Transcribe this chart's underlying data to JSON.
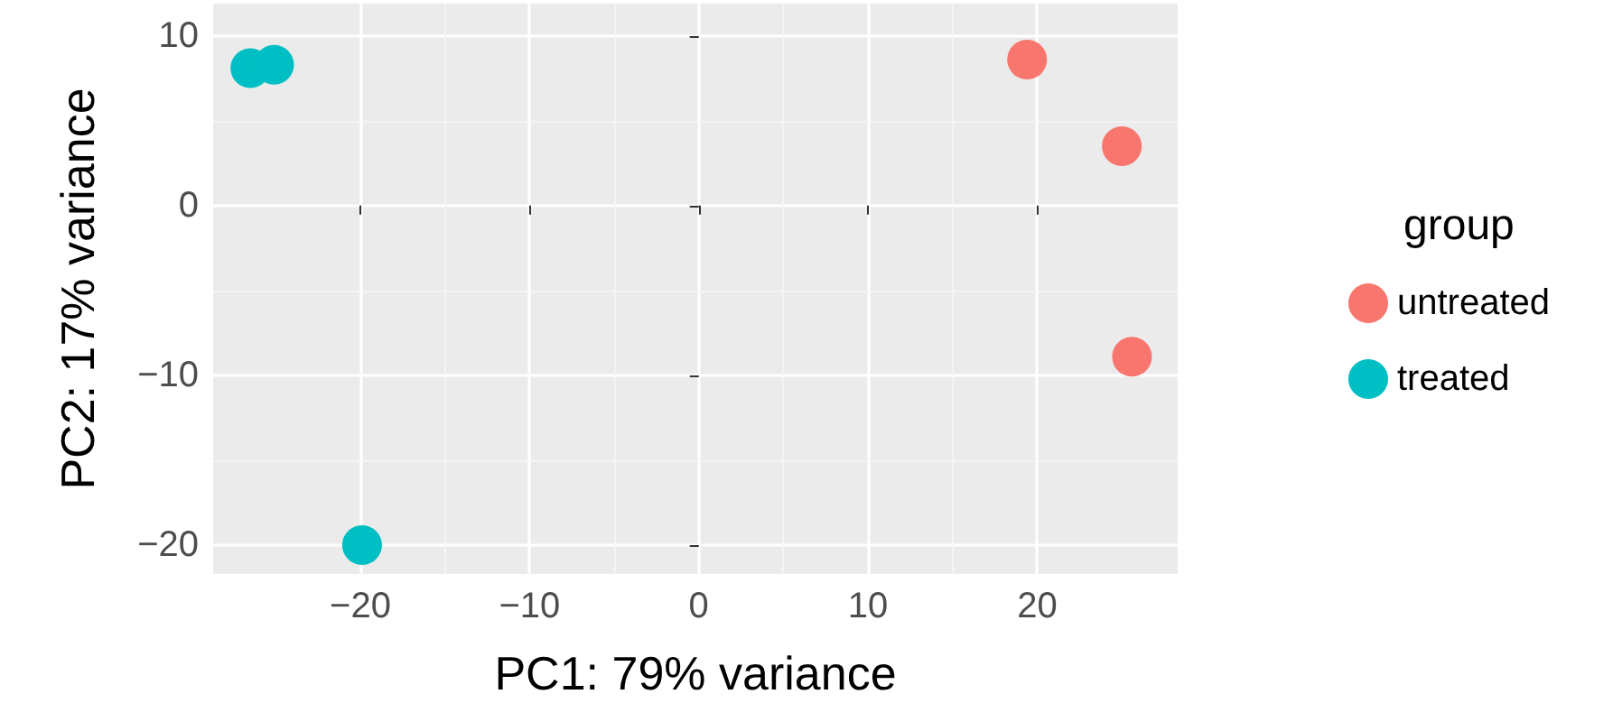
{
  "chart_data": {
    "type": "scatter",
    "xlabel": "PC1: 79% variance",
    "ylabel": "PC2: 17% variance",
    "legend_title": "group",
    "series": [
      {
        "name": "untreated",
        "color": "#f8766d",
        "x": [
          19.4,
          25.0,
          25.6
        ],
        "values": [
          8.6,
          3.5,
          -8.9
        ]
      },
      {
        "name": "treated",
        "color": "#00bfc4",
        "x": [
          -26.5,
          -25.1,
          -19.9
        ],
        "values": [
          8.1,
          8.3,
          -20.0
        ]
      }
    ],
    "xlim": [
      -28.7,
      28.3
    ],
    "ylim": [
      -21.7,
      11.9
    ],
    "xticks": [
      {
        "value": -20,
        "label": "−20"
      },
      {
        "value": -10,
        "label": "−10"
      },
      0,
      10,
      20
    ],
    "yticks": [
      {
        "value": -20,
        "label": "−20"
      },
      {
        "value": -10,
        "label": "−10"
      },
      0,
      10
    ],
    "grid": true,
    "legend": "right",
    "marker": "circle"
  }
}
